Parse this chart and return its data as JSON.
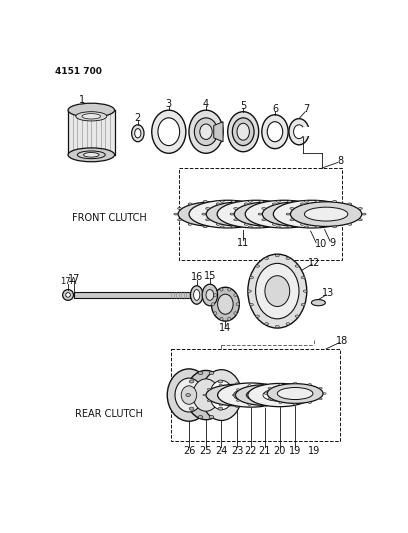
{
  "doc_number": "4151 700",
  "background_color": "#ffffff",
  "line_color": "#111111",
  "front_clutch_label": "FRONT CLUTCH",
  "rear_clutch_label": "REAR CLUTCH",
  "figsize": [
    4.08,
    5.33
  ],
  "dpi": 100
}
